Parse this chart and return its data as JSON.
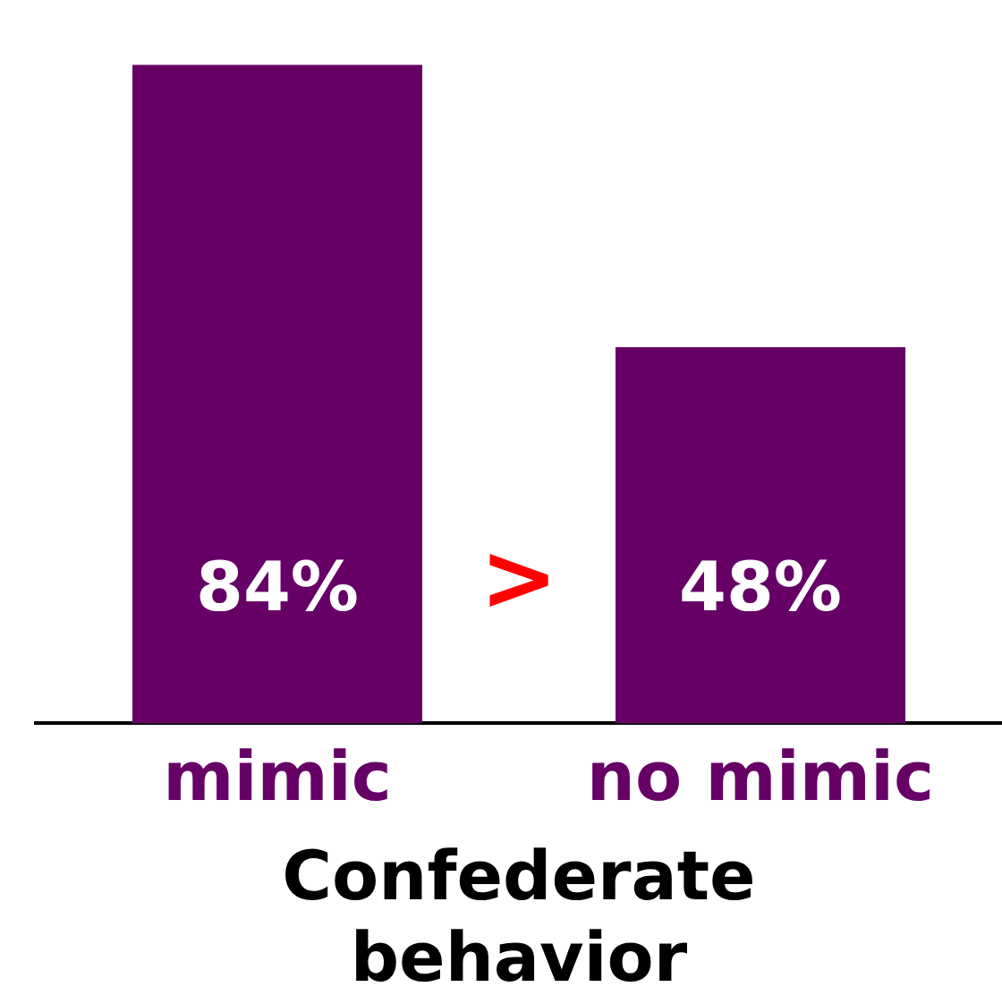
{
  "chart_data": {
    "type": "bar",
    "categories": [
      "mimic",
      "no mimic"
    ],
    "values": [
      84,
      48
    ],
    "color": "#660066",
    "xlabel": "Confederate behavior",
    "value_labels": [
      "84%",
      "48%"
    ],
    "annotations": [
      ">"
    ],
    "grid": false,
    "legend": false
  }
}
